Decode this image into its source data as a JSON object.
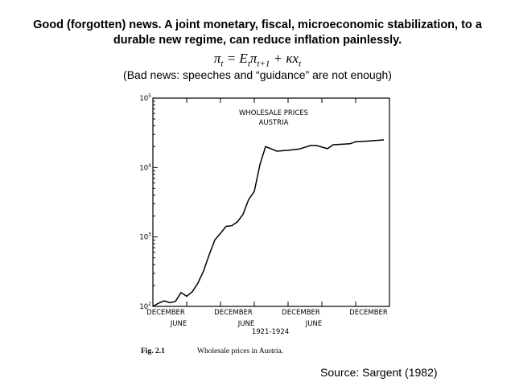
{
  "slide": {
    "headline_line1": "Good (forgotten) news. A joint monetary, fiscal, microeconomic stabilization, to a",
    "headline_line2": "durable new regime, can reduce inflation painlessly.",
    "equation": {
      "lhs": "π",
      "lhs_sub": "t",
      "eq": " = ",
      "e": "E",
      "e_sub": "t",
      "pi": "π",
      "pi_sub": "t+1",
      "plus": " + κx",
      "x_sub": "t"
    },
    "bad_news": "(Bad news: speeches and “guidance” are not enough)",
    "source": "Source: Sargent (1982)",
    "figure_caption_number": "Fig. 2.1",
    "figure_caption_text": "Wholesale prices in Austria."
  },
  "chart_data": {
    "type": "line",
    "title_line1": "WHOLESALE PRICES",
    "title_line2": "AUSTRIA",
    "xlabel": "1921-1924",
    "y_scale": "log",
    "ylim": [
      100,
      100000
    ],
    "xlim": [
      "1920-12",
      "1924-06"
    ],
    "y_ticks": [
      {
        "base": "10",
        "exp": "2"
      },
      {
        "base": "10",
        "exp": "3"
      },
      {
        "base": "10",
        "exp": "4"
      },
      {
        "base": "10",
        "exp": "5"
      }
    ],
    "x_tick_labels": [
      {
        "label": "DECEMBER",
        "date": "1920-12",
        "row": 1
      },
      {
        "label": "JUNE",
        "date": "1921-06",
        "row": 2
      },
      {
        "label": "DECEMBER",
        "date": "1921-12",
        "row": 1
      },
      {
        "label": "JUNE",
        "date": "1922-06",
        "row": 2
      },
      {
        "label": "DECEMBER",
        "date": "1922-12",
        "row": 1
      },
      {
        "label": "JUNE",
        "date": "1923-06",
        "row": 2
      },
      {
        "label": "DECEMBER",
        "date": "1923-12",
        "row": 1
      }
    ],
    "grid": false,
    "color": "#000000",
    "x": [
      "1920-12",
      "1921-01",
      "1921-02",
      "1921-03",
      "1921-04",
      "1921-05",
      "1921-06",
      "1921-07",
      "1921-08",
      "1921-09",
      "1921-10",
      "1921-11",
      "1921-12",
      "1922-01",
      "1922-02",
      "1922-03",
      "1922-04",
      "1922-05",
      "1922-06",
      "1922-07",
      "1922-08",
      "1922-10",
      "1922-12",
      "1923-02",
      "1923-04",
      "1923-05",
      "1923-07",
      "1923-08",
      "1923-11",
      "1923-12",
      "1924-02",
      "1924-05"
    ],
    "values": [
      100,
      111,
      120,
      113,
      118,
      158,
      140,
      163,
      217,
      325,
      555,
      906,
      1130,
      1420,
      1450,
      1650,
      2120,
      3460,
      4520,
      11000,
      20000,
      17200,
      17700,
      18500,
      20800,
      20800,
      18700,
      21300,
      22000,
      23500,
      24000,
      25000
    ]
  }
}
